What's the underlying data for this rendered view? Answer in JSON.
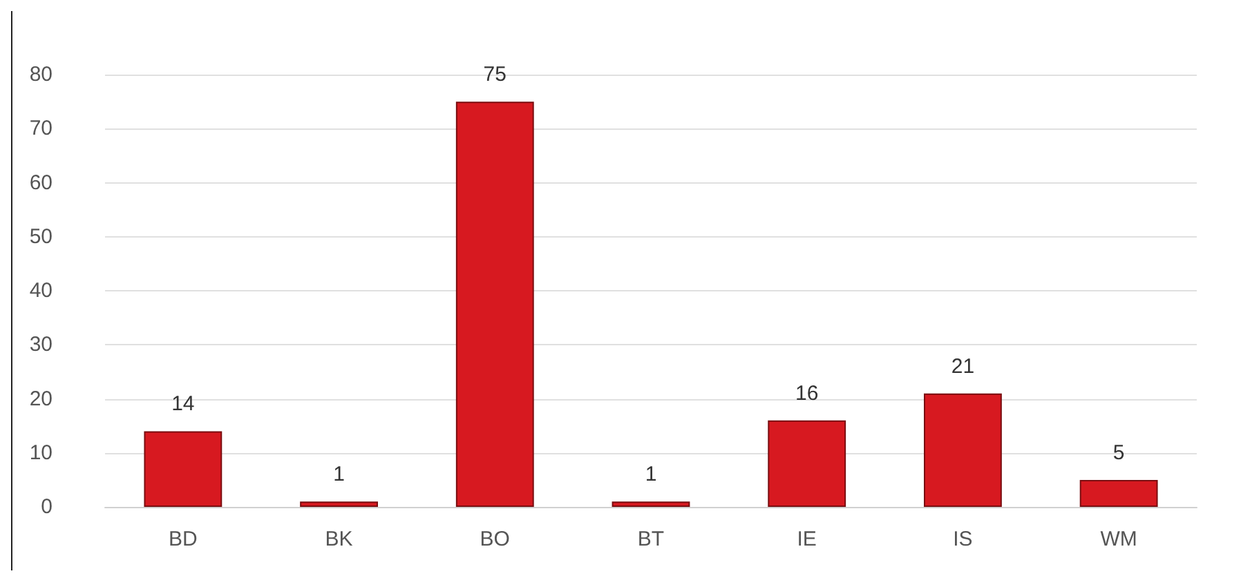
{
  "chart_data": {
    "type": "bar",
    "categories": [
      "BD",
      "BK",
      "BO",
      "BT",
      "IE",
      "IS",
      "WM"
    ],
    "values": [
      14,
      1,
      75,
      1,
      16,
      21,
      5
    ],
    "color": "#d71920",
    "ylim": [
      0,
      80
    ],
    "yticks": [
      0,
      10,
      20,
      30,
      40,
      50,
      60,
      70,
      80
    ],
    "grid": "y",
    "data_labels": true
  }
}
